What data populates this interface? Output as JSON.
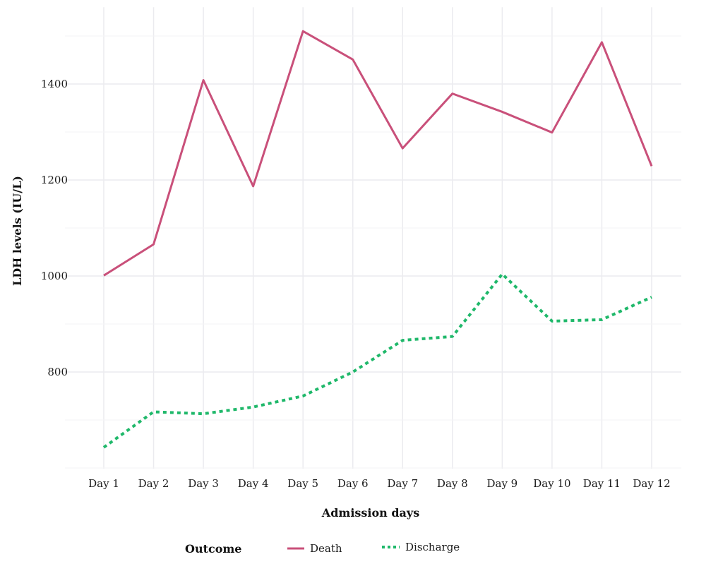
{
  "chart_data": {
    "type": "line",
    "categories": [
      "Day 1",
      "Day 2",
      "Day 3",
      "Day 4",
      "Day 5",
      "Day 6",
      "Day 7",
      "Day 8",
      "Day 9",
      "Day 10",
      "Day 11",
      "Day 12"
    ],
    "series": [
      {
        "name": "Death",
        "color": "#c9507a",
        "style": "solid",
        "values": [
          1001,
          1066,
          1408,
          1187,
          1510,
          1451,
          1266,
          1380,
          1342,
          1299,
          1487,
          1229
        ]
      },
      {
        "name": "Discharge",
        "color": "#1fb86a",
        "style": "dotted",
        "values": [
          643,
          717,
          713,
          727,
          750,
          800,
          866,
          874,
          1004,
          906,
          909,
          956
        ]
      }
    ],
    "xlabel": "Admission days",
    "ylabel": "LDH levels (IU/L)",
    "ylim": [
      600,
      1560
    ],
    "yticks": [
      800,
      1000,
      1200,
      1400
    ],
    "grid": true,
    "legend": {
      "title": "Outcome",
      "position": "bottom"
    }
  }
}
